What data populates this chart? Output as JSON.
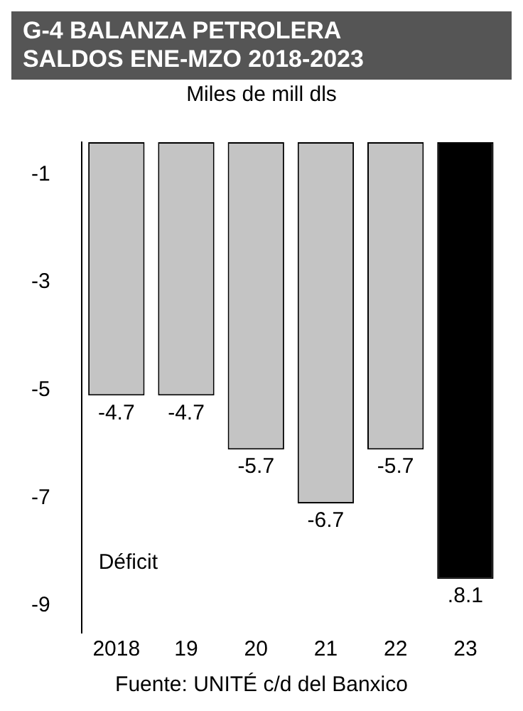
{
  "chart_data": {
    "type": "bar",
    "title": "G-4     BALANZA PETROLERA\nSALDOS ENE-MZO 2018-2023",
    "ylabel": "Miles de mill dls",
    "categories": [
      "2018",
      "19",
      "20",
      "21",
      "22",
      "23"
    ],
    "values": [
      -4.7,
      -4.7,
      -5.7,
      -6.7,
      -5.7,
      -8.1
    ],
    "base": [
      -0.4,
      -0.4,
      -0.4,
      -0.4,
      -0.4,
      -0.4
    ],
    "colors": [
      "#c4c4c4",
      "#c4c4c4",
      "#c4c4c4",
      "#c4c4c4",
      "#c4c4c4",
      "#000000"
    ],
    "value_labels": [
      "-4.7",
      "-4.7",
      "-5.7",
      "-6.7",
      "-5.7",
      ".8.1"
    ],
    "ylim": [
      -9.5,
      -0.4
    ],
    "yticks": [
      -1,
      -3,
      -5,
      -7,
      -9
    ],
    "grid": false,
    "legend": false,
    "annotations": [
      "Déficit",
      "Fuente: UNITÉ c/d del Banxico"
    ]
  }
}
